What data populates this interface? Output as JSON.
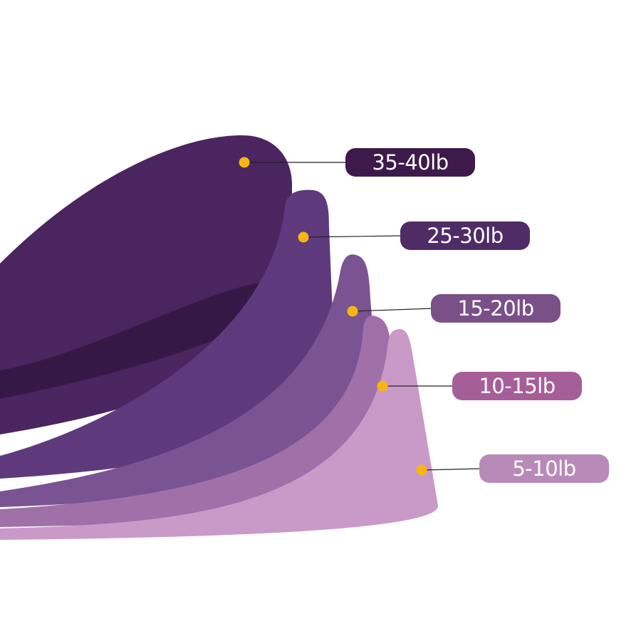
{
  "labels": [
    {
      "text": "35-40lb",
      "color": "#3e1a4a"
    },
    {
      "text": "25-30lb",
      "color": "#4f2c66"
    },
    {
      "text": "15-20lb",
      "color": "#7a5088"
    },
    {
      "text": "10-15lb",
      "color": "#a65e98"
    },
    {
      "text": "5-10lb",
      "color": "#b88ab8"
    }
  ],
  "dot_color": "#f7b512",
  "band_colors": [
    "#4a2560",
    "#5e3a7c",
    "#7a5393",
    "#a070a8",
    "#c99ac8"
  ]
}
